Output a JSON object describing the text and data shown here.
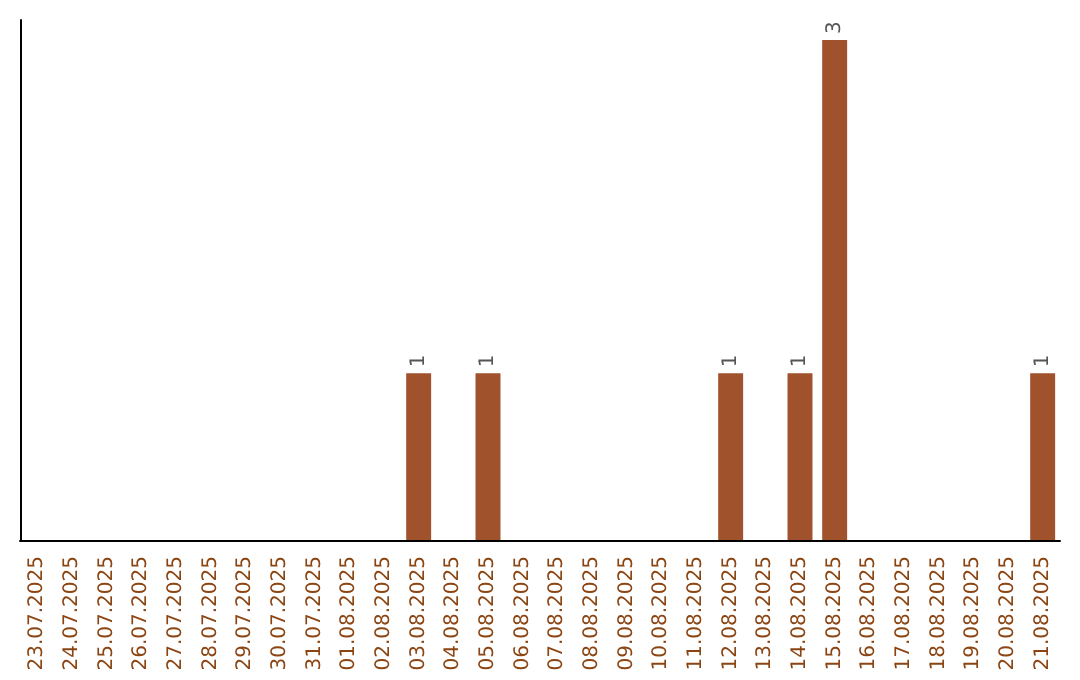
{
  "chart_data": {
    "type": "bar",
    "categories": [
      "23.07.2025",
      "24.07.2025",
      "25.07.2025",
      "26.07.2025",
      "27.07.2025",
      "28.07.2025",
      "29.07.2025",
      "30.07.2025",
      "31.07.2025",
      "01.08.2025",
      "02.08.2025",
      "03.08.2025",
      "04.08.2025",
      "05.08.2025",
      "06.08.2025",
      "07.08.2025",
      "08.08.2025",
      "09.08.2025",
      "10.08.2025",
      "11.08.2025",
      "12.08.2025",
      "13.08.2025",
      "14.08.2025",
      "15.08.2025",
      "16.08.2025",
      "17.08.2025",
      "18.08.2025",
      "19.08.2025",
      "20.08.2025",
      "21.08.2025"
    ],
    "values": [
      0,
      0,
      0,
      0,
      0,
      0,
      0,
      0,
      0,
      0,
      0,
      1,
      0,
      1,
      0,
      0,
      0,
      0,
      0,
      0,
      1,
      0,
      1,
      3,
      0,
      0,
      0,
      0,
      0,
      1
    ],
    "value_labels": [
      null,
      null,
      null,
      null,
      null,
      null,
      null,
      null,
      null,
      null,
      null,
      "1",
      null,
      "1",
      null,
      null,
      null,
      null,
      null,
      null,
      "1",
      null,
      "1",
      "3",
      null,
      null,
      null,
      null,
      null,
      "1"
    ],
    "color": "#a0522d",
    "tick_labels": "x",
    "grid": false
  }
}
